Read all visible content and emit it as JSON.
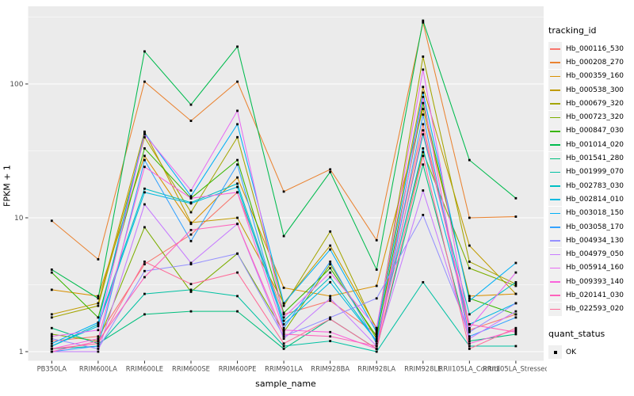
{
  "chart_data": {
    "type": "line",
    "x_axis_label": "sample_name",
    "y_axis_label": "FPKM + 1",
    "y_scale": "log10",
    "y_ticks": [
      1,
      10,
      100
    ],
    "y_minor_ticks": [
      3.162,
      31.623,
      316.228
    ],
    "legend_title": "tracking_id",
    "quant_legend": {
      "title": "quant_status",
      "items": [
        {
          "label": "OK",
          "marker": "black-square"
        }
      ]
    },
    "panel_bg": "#EBEBEB",
    "grid_color": "#FFFFFF",
    "axis_text_color": "#4D4D4D",
    "point_color": "#000000",
    "categories": [
      "PB350LA",
      "RRIM600LA",
      "RRIM600LE",
      "RRIM600SE",
      "RRIM600PE",
      "RRIM901LA",
      "RRIM928BA",
      "RRIM928LA",
      "RRIM928LE",
      "RRII105LA_Control",
      "RRII105LA_Stressed"
    ],
    "series": [
      {
        "name": "Hb_000116_530",
        "color": "#F8766D",
        "values": [
          1.2,
          1.3,
          4.5,
          7.5,
          15.5,
          1.9,
          2.4,
          1.35,
          50,
          1.45,
          1.9
        ]
      },
      {
        "name": "Hb_000208_270",
        "color": "#EA8331",
        "values": [
          9.5,
          4.9,
          104,
          53,
          104,
          15.7,
          23,
          6.8,
          288,
          10,
          10.2
        ]
      },
      {
        "name": "Hb_000359_160",
        "color": "#D89000",
        "values": [
          2.9,
          2.6,
          29,
          9,
          20,
          3.0,
          2.6,
          3.1,
          65,
          2.6,
          2.7
        ]
      },
      {
        "name": "Hb_000538_300",
        "color": "#C09B00",
        "values": [
          1.9,
          2.3,
          44,
          9.2,
          10,
          2.3,
          6.2,
          1.5,
          95,
          6.2,
          2.7
        ]
      },
      {
        "name": "Hb_000679_320",
        "color": "#A3A500",
        "values": [
          1.8,
          2.2,
          40,
          11,
          40,
          2.2,
          7.9,
          1.45,
          160,
          4.7,
          3.2
        ]
      },
      {
        "name": "Hb_000723_320",
        "color": "#7CAE00",
        "values": [
          1.35,
          1.2,
          8.5,
          2.8,
          5.4,
          1.4,
          4.5,
          1.25,
          31,
          4.2,
          3.1
        ]
      },
      {
        "name": "Hb_000847_030",
        "color": "#39B600",
        "values": [
          3.9,
          1.8,
          33,
          14,
          27,
          1.95,
          4.2,
          1.3,
          72,
          2.5,
          1.9
        ]
      },
      {
        "name": "Hb_001014_020",
        "color": "#00BB4E",
        "values": [
          4.1,
          2.5,
          175,
          70,
          190,
          7.3,
          22,
          4.1,
          297,
          27,
          14
        ]
      },
      {
        "name": "Hb_001541_280",
        "color": "#00BF7D",
        "values": [
          1.5,
          1.15,
          1.9,
          2.0,
          2.0,
          1.05,
          1.75,
          1.05,
          25,
          1.2,
          1.35
        ]
      },
      {
        "name": "Hb_001999_070",
        "color": "#00C1A3",
        "values": [
          1.05,
          1.1,
          2.7,
          2.9,
          2.6,
          1.1,
          1.2,
          1.0,
          3.3,
          1.1,
          1.1
        ]
      },
      {
        "name": "Hb_002783_030",
        "color": "#00BFC4",
        "values": [
          1.1,
          1.6,
          16.5,
          13,
          18,
          1.7,
          3.6,
          1.2,
          42,
          1.9,
          3.3
        ]
      },
      {
        "name": "Hb_002814_010",
        "color": "#00BAE0",
        "values": [
          1.1,
          1.55,
          15.5,
          12.8,
          17,
          1.6,
          3.3,
          1.2,
          33,
          1.6,
          2.3
        ]
      },
      {
        "name": "Hb_003018_150",
        "color": "#00B0F6",
        "values": [
          1.15,
          1.65,
          43,
          14.5,
          50,
          2.3,
          5.8,
          1.4,
          86,
          2.4,
          4.6
        ]
      },
      {
        "name": "Hb_003058_170",
        "color": "#35A2FF",
        "values": [
          1.0,
          1.1,
          27,
          6.7,
          25,
          1.5,
          4.7,
          1.15,
          59,
          1.3,
          1.8
        ]
      },
      {
        "name": "Hb_004934_130",
        "color": "#9590FF",
        "values": [
          1.25,
          1.05,
          4.0,
          4.5,
          5.4,
          1.3,
          1.8,
          2.5,
          10.5,
          1.4,
          2.3
        ]
      },
      {
        "name": "Hb_004979_050",
        "color": "#C77CFF",
        "values": [
          1.0,
          1.0,
          12.6,
          4.6,
          9,
          1.25,
          2.5,
          1.1,
          16,
          1.25,
          2.0
        ]
      },
      {
        "name": "Hb_005914_160",
        "color": "#E76BF3",
        "values": [
          1.3,
          1.45,
          42,
          16,
          63,
          1.8,
          3.9,
          1.5,
          128,
          1.5,
          3.9
        ]
      },
      {
        "name": "Hb_009393_140",
        "color": "#FA62DB",
        "values": [
          1.05,
          1.25,
          24,
          14,
          15.5,
          1.45,
          1.4,
          1.05,
          80,
          1.15,
          1.45
        ]
      },
      {
        "name": "Hb_020141_030",
        "color": "#FF62BC",
        "values": [
          1.0,
          1.2,
          3.6,
          8.1,
          9,
          1.35,
          1.3,
          1.1,
          45,
          1.6,
          1.4
        ]
      },
      {
        "name": "Hb_022593_020",
        "color": "#FF6A98",
        "values": [
          1.05,
          1.15,
          4.7,
          3.2,
          3.9,
          1.15,
          1.75,
          1.05,
          29,
          1.05,
          1.5
        ]
      }
    ]
  }
}
